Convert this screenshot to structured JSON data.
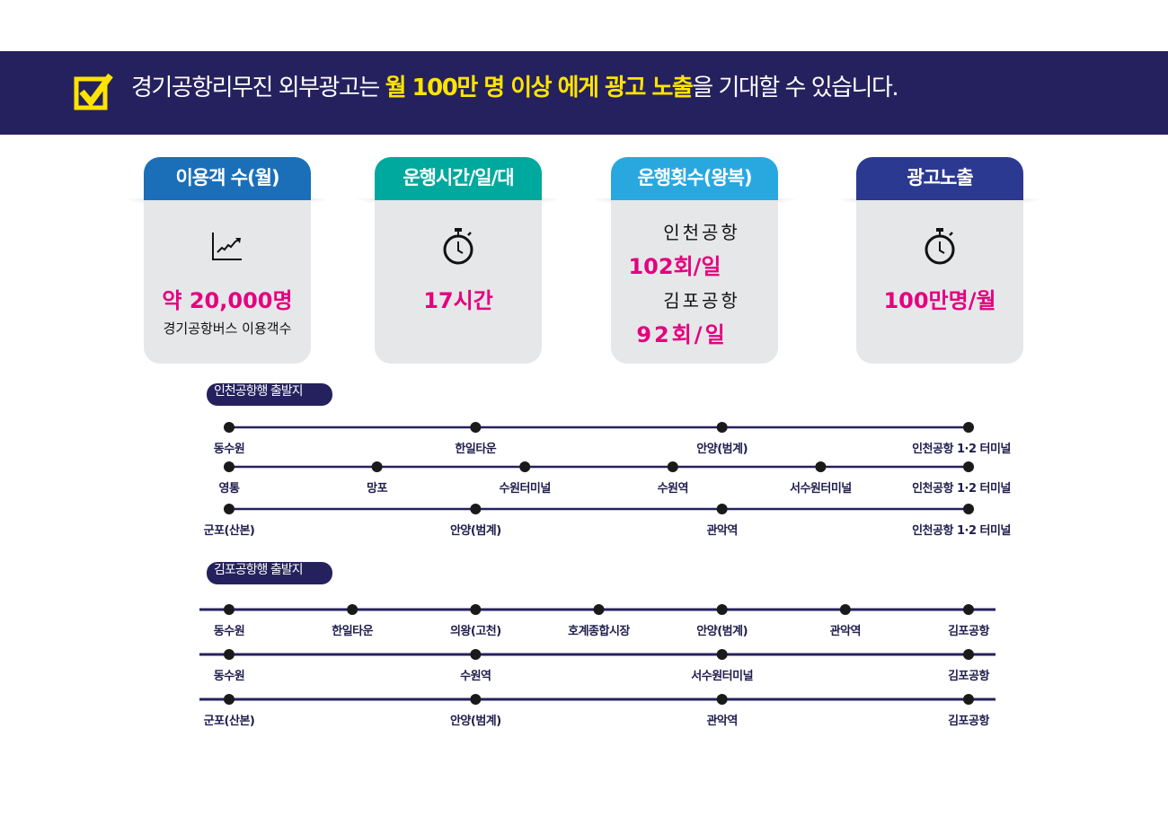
{
  "banner": {
    "text_before": "경기공항리무진 외부광고는 ",
    "highlight": "월 100만 명 이상 에게 광고 노출",
    "text_after": "을 기대할 수 있습니다.",
    "icon": "checkbox-check-icon",
    "colors": {
      "background": "#25215e",
      "highlight": "#ffe400"
    }
  },
  "cards": [
    {
      "title": "이용객 수(월)",
      "color": "#1b6fb8",
      "icon": "chart-trend-icon",
      "value": "약 20,000명",
      "caption": "경기공항버스 이용객수"
    },
    {
      "title": "운행시간/일/대",
      "color": "#00a99d",
      "icon": "stopwatch-icon",
      "value": "17시간"
    },
    {
      "title": "운행횟수(왕복)",
      "color": "#29a8e0",
      "incheon_label": "인천공항",
      "incheon_value": "102회/일",
      "gimpo_label": "김포공항",
      "gimpo_value": "92회/일"
    },
    {
      "title": "광고노출",
      "color": "#2b3990",
      "icon": "stopwatch-icon",
      "value": "100만명/월"
    }
  ],
  "incheon": {
    "label": "인천공항행 출발지",
    "routes": [
      [
        "동수원",
        "한일타운",
        "안양(범계)",
        "인천공항 1·2 터미널"
      ],
      [
        "영통",
        "망포",
        "수원터미널",
        "수원역",
        "서수원터미널",
        "인천공항 1·2 터미널"
      ],
      [
        "군포(산본)",
        "안양(범계)",
        "관악역",
        "인천공항 1·2 터미널"
      ]
    ]
  },
  "gimpo": {
    "label": "김포공항행 출발지",
    "routes": [
      [
        "동수원",
        "한일타운",
        "의왕(고천)",
        "호계종합시장",
        "안양(범계)",
        "관악역",
        "김포공항"
      ],
      [
        "동수원",
        "수원역",
        "서수원터미널",
        "김포공항"
      ],
      [
        "군포(산본)",
        "안양(범계)",
        "관악역",
        "김포공항"
      ]
    ]
  }
}
